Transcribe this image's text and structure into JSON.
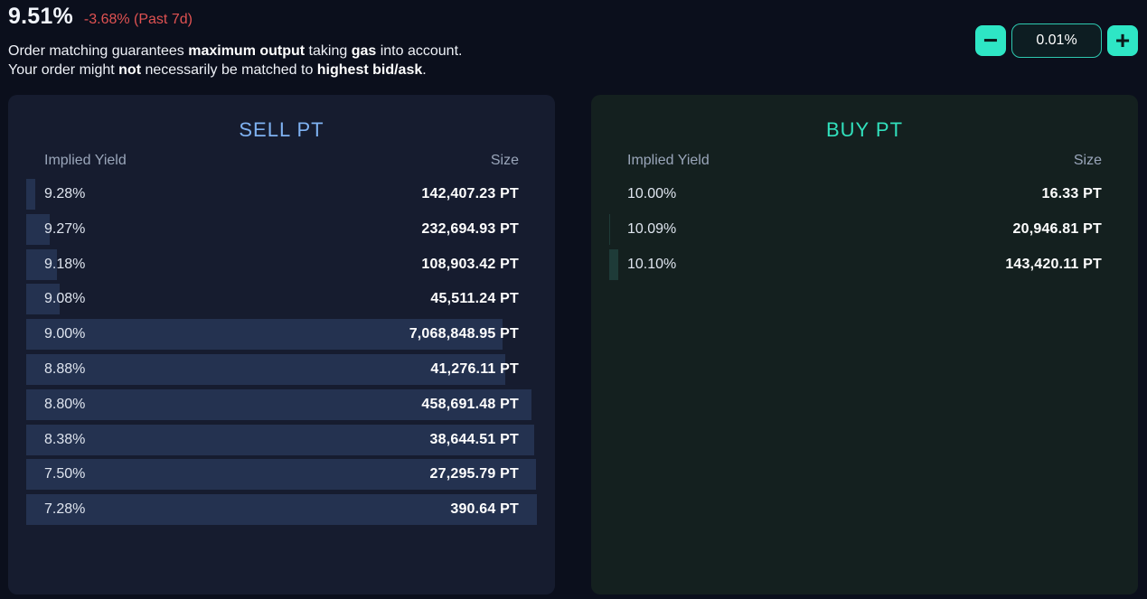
{
  "header": {
    "rate": "9.51%",
    "change": "-3.68% (Past 7d)",
    "line1": [
      {
        "text": "Order matching guarantees ",
        "bold": false
      },
      {
        "text": "maximum output",
        "bold": true
      },
      {
        "text": " taking ",
        "bold": false
      },
      {
        "text": "gas",
        "bold": true
      },
      {
        "text": " into account.",
        "bold": false
      }
    ],
    "line2": [
      {
        "text": "Your order might ",
        "bold": false
      },
      {
        "text": "not",
        "bold": true
      },
      {
        "text": " necessarily be matched to ",
        "bold": false
      },
      {
        "text": "highest bid/ask",
        "bold": true
      },
      {
        "text": ".",
        "bold": false
      }
    ]
  },
  "stepper": {
    "minus": "−",
    "plus": "+",
    "value": "0.01%"
  },
  "colors": {
    "accent": "#2ee6c5",
    "sell_title": "#7fb2f2",
    "buy_title": "#31e0bc",
    "negative": "#e05252"
  },
  "sell": {
    "title": "SELL PT",
    "col_yield": "Implied Yield",
    "col_size": "Size",
    "rows": [
      {
        "yield": "9.28%",
        "size": "142,407.23 PT",
        "depth": 0.017
      },
      {
        "yield": "9.27%",
        "size": "232,694.93 PT",
        "depth": 0.046
      },
      {
        "yield": "9.18%",
        "size": "108,903.42 PT",
        "depth": 0.06
      },
      {
        "yield": "9.08%",
        "size": "45,511.24 PT",
        "depth": 0.066
      },
      {
        "yield": "9.00%",
        "size": "7,068,848.95 PT",
        "depth": 0.933
      },
      {
        "yield": "8.88%",
        "size": "41,276.11 PT",
        "depth": 0.938
      },
      {
        "yield": "8.80%",
        "size": "458,691.48 PT",
        "depth": 0.99
      },
      {
        "yield": "8.38%",
        "size": "38,644.51 PT",
        "depth": 0.995
      },
      {
        "yield": "7.50%",
        "size": "27,295.79 PT",
        "depth": 0.998
      },
      {
        "yield": "7.28%",
        "size": "390.64 PT",
        "depth": 1.0
      }
    ]
  },
  "buy": {
    "title": "BUY PT",
    "col_yield": "Implied Yield",
    "col_size": "Size",
    "rows": [
      {
        "yield": "10.00%",
        "size": "16.33 PT",
        "depth": 0.0
      },
      {
        "yield": "10.09%",
        "size": "20,946.81 PT",
        "depth": 0.002
      },
      {
        "yield": "10.10%",
        "size": "143,420.11 PT",
        "depth": 0.018
      }
    ]
  }
}
